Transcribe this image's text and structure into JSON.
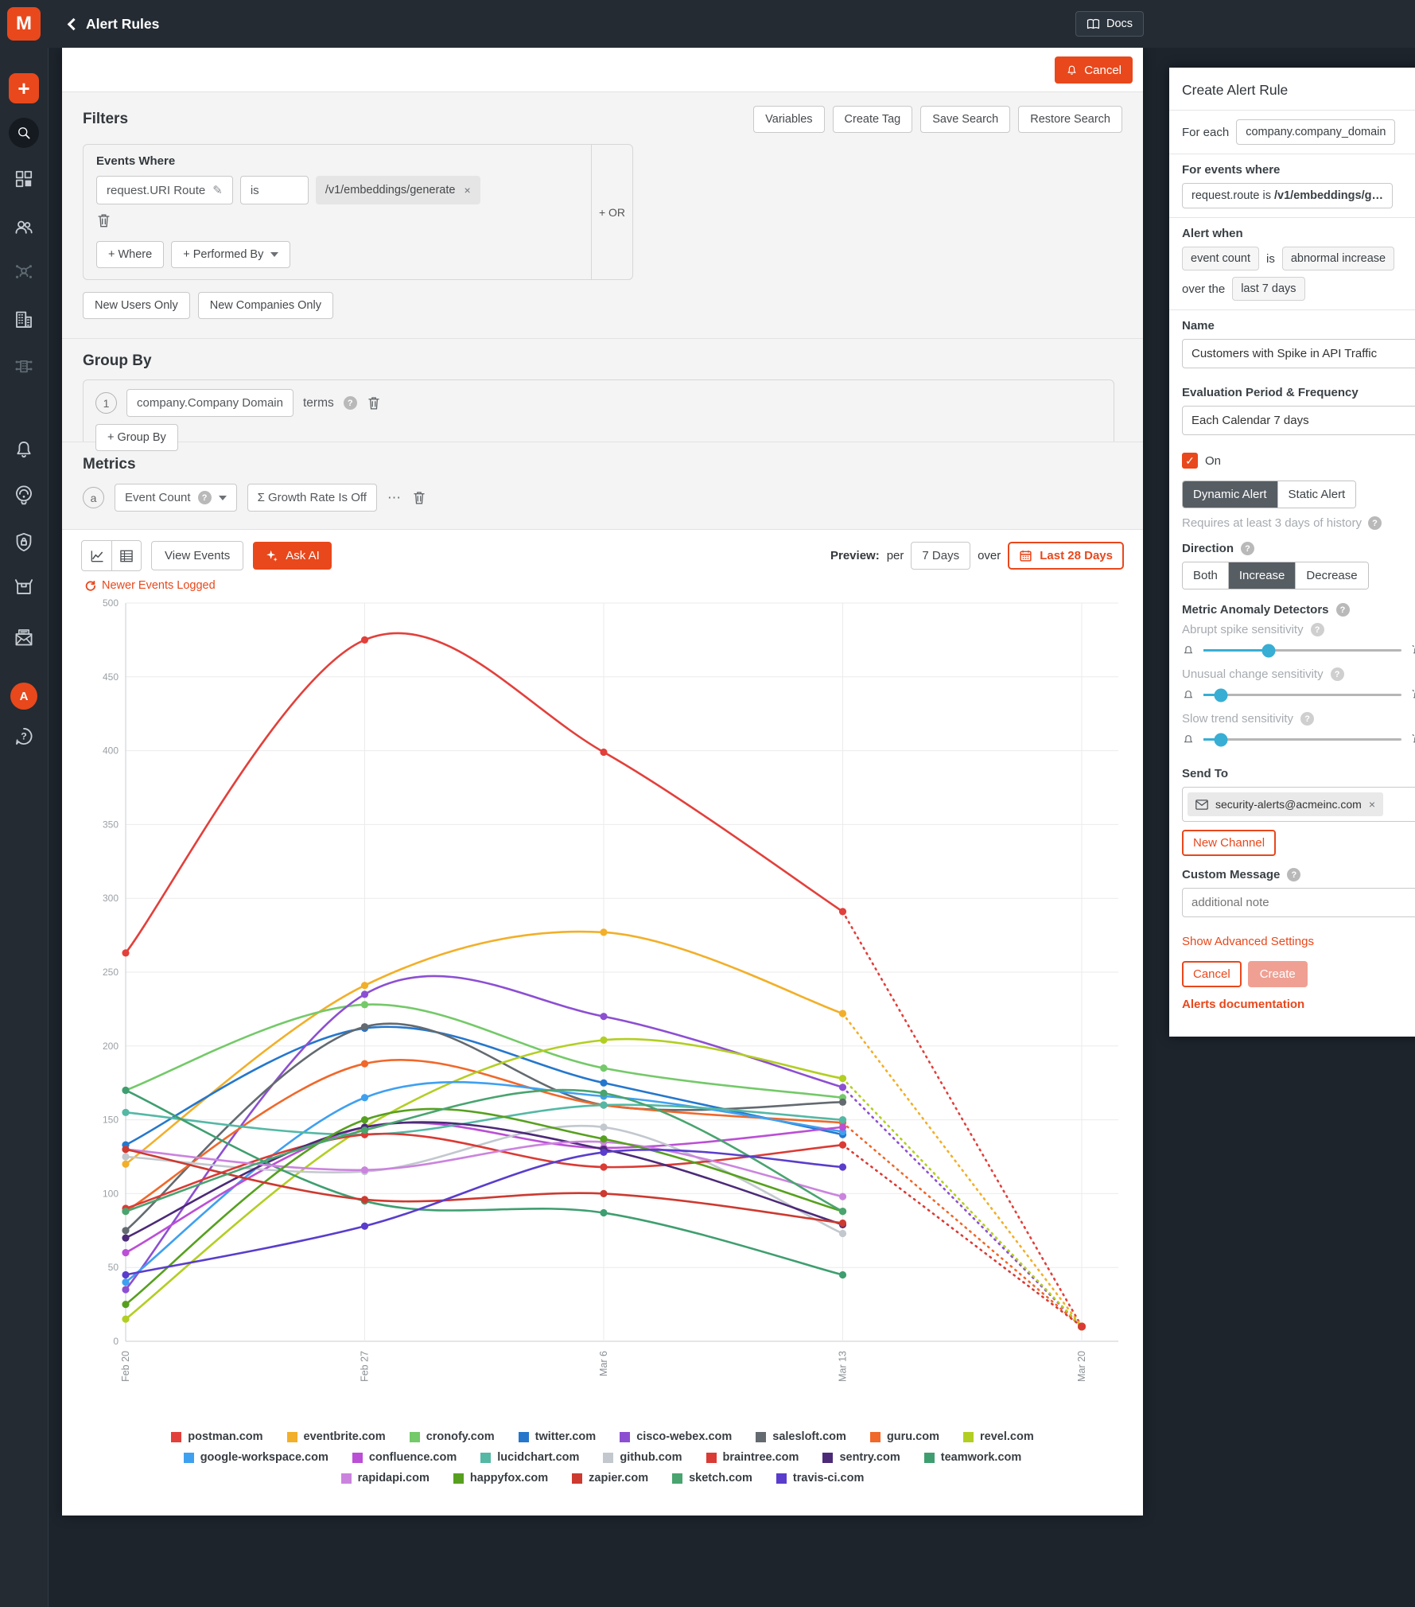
{
  "topbar": {
    "title": "Alert Rules",
    "docs": "Docs"
  },
  "sidebar": {
    "logo": "M",
    "avatar_initial": "A"
  },
  "toolbar": {
    "cancel": "Cancel",
    "variables": "Variables",
    "create_tag": "Create Tag",
    "save_search": "Save Search",
    "restore_search": "Restore Search"
  },
  "filters": {
    "heading": "Filters",
    "events_where": "Events Where",
    "field": "request.URI Route",
    "operator": "is",
    "value": "/v1/embeddings/generate",
    "or": "+ OR",
    "add_where": "+ Where",
    "add_performed_by": "+ Performed By",
    "new_users_only": "New Users Only",
    "new_companies_only": "New Companies Only"
  },
  "group_by": {
    "heading": "Group By",
    "index": "1",
    "field": "company.Company Domain",
    "aggregation": "terms",
    "add": "+ Group By"
  },
  "metrics": {
    "heading": "Metrics",
    "badge": "a",
    "metric": "Event Count",
    "growth_rate": "Σ Growth Rate Is Off",
    "more": "⋯"
  },
  "chart_controls": {
    "view_events": "View Events",
    "ask_ai": "Ask AI",
    "refresh_note": "Newer Events Logged",
    "preview": "Preview:",
    "per": "per",
    "interval": "7 Days",
    "over": "over",
    "range": "Last 28 Days"
  },
  "chart_data": {
    "type": "line",
    "title": "",
    "xlabel": "",
    "ylabel": "",
    "x": [
      "Feb 20",
      "Feb 27",
      "Mar 6",
      "Mar 13",
      "Mar 20"
    ],
    "ylim": [
      0,
      500
    ],
    "ytick_step": 50,
    "grid": true,
    "legend_position": "bottom",
    "projection_note": "dotted segment from Mar 13 to Mar 20 is a partial-period projection",
    "legend_rows": [
      8,
      7,
      5
    ],
    "series": [
      {
        "name": "postman.com",
        "color": "#e2403b",
        "values": [
          263,
          475,
          399,
          291
        ],
        "projected": 10
      },
      {
        "name": "eventbrite.com",
        "color": "#f2af29",
        "values": [
          120,
          241,
          277,
          222
        ],
        "projected": 10
      },
      {
        "name": "cronofy.com",
        "color": "#74c969",
        "values": [
          170,
          228,
          185,
          165
        ],
        "projected": null
      },
      {
        "name": "twitter.com",
        "color": "#2577cc",
        "values": [
          133,
          212,
          175,
          140
        ],
        "projected": null
      },
      {
        "name": "cisco-webex.com",
        "color": "#8c4fd2",
        "values": [
          35,
          235,
          220,
          172
        ],
        "projected": 10
      },
      {
        "name": "salesloft.com",
        "color": "#636a70",
        "values": [
          75,
          213,
          160,
          162
        ],
        "projected": null
      },
      {
        "name": "guru.com",
        "color": "#f0682a",
        "values": [
          88,
          188,
          160,
          148
        ],
        "projected": 10
      },
      {
        "name": "revel.com",
        "color": "#b3ce23",
        "values": [
          15,
          145,
          204,
          178
        ],
        "projected": 10
      },
      {
        "name": "google-workspace.com",
        "color": "#3fa0f0",
        "values": [
          40,
          165,
          166,
          142
        ],
        "projected": null
      },
      {
        "name": "confluence.com",
        "color": "#bb4fd6",
        "values": [
          60,
          145,
          131,
          145
        ],
        "projected": null
      },
      {
        "name": "lucidchart.com",
        "color": "#54b8a5",
        "values": [
          155,
          140,
          160,
          150
        ],
        "projected": null
      },
      {
        "name": "github.com",
        "color": "#c2c8ce",
        "values": [
          125,
          115,
          145,
          73
        ],
        "projected": null
      },
      {
        "name": "braintree.com",
        "color": "#da3b35",
        "values": [
          90,
          140,
          118,
          133
        ],
        "projected": 10
      },
      {
        "name": "sentry.com",
        "color": "#4c2a78",
        "values": [
          70,
          145,
          130,
          79
        ],
        "projected": null
      },
      {
        "name": "teamwork.com",
        "color": "#3f9e70",
        "values": [
          170,
          95,
          87,
          45
        ],
        "projected": null
      },
      {
        "name": "rapidapi.com",
        "color": "#cb84de",
        "values": [
          130,
          116,
          135,
          98
        ],
        "projected": null
      },
      {
        "name": "happyfox.com",
        "color": "#57a01f",
        "values": [
          25,
          150,
          137,
          88
        ],
        "projected": null
      },
      {
        "name": "zapier.com",
        "color": "#cc3a30",
        "values": [
          130,
          96,
          100,
          80
        ],
        "projected": null
      },
      {
        "name": "sketch.com",
        "color": "#49a470",
        "values": [
          88,
          143,
          168,
          88
        ],
        "projected": null
      },
      {
        "name": "travis-ci.com",
        "color": "#5a3dcc",
        "values": [
          45,
          78,
          128,
          118
        ],
        "projected": null
      }
    ]
  },
  "alert_panel": {
    "title": "Create Alert Rule",
    "for_each": "For each",
    "for_each_value": "company.company_domain",
    "for_events_where": "For events where",
    "events_filter_prefix": "request.route is ",
    "events_filter_value": "/v1/embeddings/g…",
    "alert_when": "Alert when",
    "metric": "event count",
    "is": "is",
    "condition": "abnormal increase",
    "over_the": "over the",
    "window": "last 7 days",
    "name_label": "Name",
    "name_value": "Customers with Spike in API Traffic",
    "evaluation_label": "Evaluation Period & Frequency",
    "evaluation_value": "Each Calendar 7 days",
    "enabled_label": "On",
    "type_options": [
      "Dynamic Alert",
      "Static Alert"
    ],
    "type_selected": "Dynamic Alert",
    "history_note": "Requires at least 3 days of history",
    "direction_label": "Direction",
    "direction_options": [
      "Both",
      "Increase",
      "Decrease"
    ],
    "direction_selected": "Increase",
    "detectors_label": "Metric Anomaly Detectors",
    "sliders": [
      {
        "label": "Abrupt spike sensitivity",
        "percent": 33
      },
      {
        "label": "Unusual change sensitivity",
        "percent": 9
      },
      {
        "label": "Slow trend sensitivity",
        "percent": 9
      }
    ],
    "send_to_label": "Send To",
    "recipient": "security-alerts@acmeinc.com",
    "new_channel": "New Channel",
    "custom_message_label": "Custom Message",
    "custom_message_placeholder": "additional note",
    "advanced_link": "Show Advanced Settings",
    "cancel": "Cancel",
    "create": "Create",
    "docs_link": "Alerts documentation"
  }
}
